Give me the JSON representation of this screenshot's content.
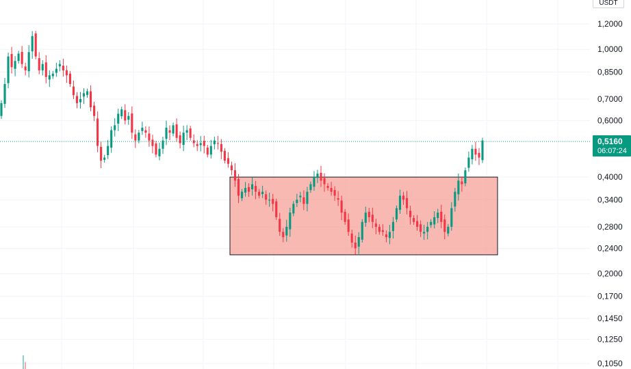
{
  "chart_data": {
    "type": "candlestick",
    "currency": "USDT",
    "scale": "log",
    "grid": true,
    "y_ticks": [
      "1,2000",
      "1,0000",
      "0,8500",
      "0,7000",
      "0,6000",
      "0,5160",
      "0,4000",
      "0,3400",
      "0,2800",
      "0,2400",
      "0,2000",
      "0,1700",
      "0,1450",
      "0,1250",
      "0,1050"
    ],
    "y_tick_values": [
      1.2,
      1.0,
      0.85,
      0.7,
      0.6,
      0.516,
      0.4,
      0.34,
      0.28,
      0.24,
      0.2,
      0.17,
      0.145,
      0.125,
      0.105
    ],
    "last_price": "0,5160",
    "last_price_value": 0.516,
    "countdown": "06:07:24",
    "colors": {
      "up": "#089981",
      "down": "#f23645",
      "zone_fill": "#f7a19a",
      "zone_border": "#131722",
      "grid": "#f0f3fa"
    },
    "closes": [
      0.68,
      0.78,
      0.95,
      0.88,
      0.92,
      0.97,
      0.9,
      0.86,
      0.98,
      1.1,
      0.95,
      0.86,
      0.9,
      0.82,
      0.83,
      0.84,
      0.87,
      0.9,
      0.86,
      0.83,
      0.78,
      0.72,
      0.68,
      0.7,
      0.73,
      0.74,
      0.66,
      0.62,
      0.5,
      0.45,
      0.46,
      0.5,
      0.56,
      0.58,
      0.63,
      0.65,
      0.6,
      0.62,
      0.55,
      0.52,
      0.55,
      0.57,
      0.55,
      0.52,
      0.5,
      0.47,
      0.49,
      0.52,
      0.57,
      0.55,
      0.58,
      0.53,
      0.51,
      0.55,
      0.56,
      0.53,
      0.51,
      0.5,
      0.51,
      0.5,
      0.47,
      0.5,
      0.52,
      0.51,
      0.48,
      0.45,
      0.44,
      0.42,
      0.39,
      0.35,
      0.36,
      0.37,
      0.36,
      0.38,
      0.36,
      0.35,
      0.36,
      0.34,
      0.34,
      0.33,
      0.3,
      0.27,
      0.26,
      0.28,
      0.31,
      0.33,
      0.34,
      0.35,
      0.33,
      0.36,
      0.38,
      0.4,
      0.41,
      0.39,
      0.38,
      0.37,
      0.36,
      0.35,
      0.34,
      0.31,
      0.29,
      0.27,
      0.25,
      0.24,
      0.26,
      0.29,
      0.31,
      0.3,
      0.29,
      0.28,
      0.27,
      0.27,
      0.26,
      0.27,
      0.29,
      0.32,
      0.35,
      0.34,
      0.32,
      0.3,
      0.29,
      0.28,
      0.27,
      0.27,
      0.28,
      0.29,
      0.3,
      0.31,
      0.29,
      0.27,
      0.28,
      0.32,
      0.36,
      0.39,
      0.38,
      0.42,
      0.46,
      0.49,
      0.47,
      0.46,
      0.52
    ]
  }
}
